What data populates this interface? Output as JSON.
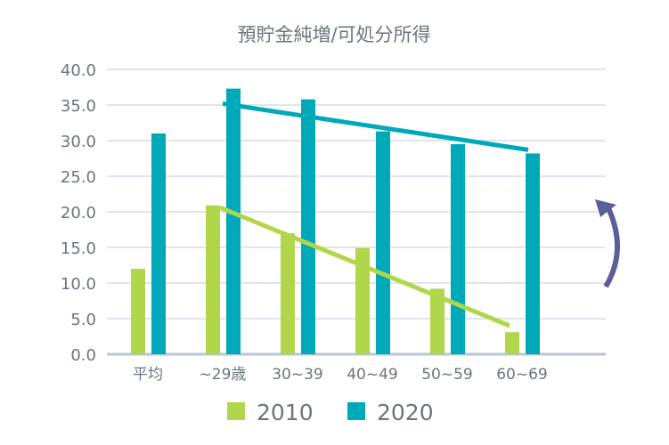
{
  "chart_data": {
    "type": "bar",
    "title": "預貯金純増/可処分所得",
    "categories": [
      "平均",
      "~29歳",
      "30~39",
      "40~49",
      "50~59",
      "60~69"
    ],
    "series": [
      {
        "name": "2010",
        "color": "#b1d64b",
        "values": [
          12.0,
          20.9,
          17.0,
          14.9,
          9.2,
          3.1
        ]
      },
      {
        "name": "2020",
        "color": "#00a9ba",
        "values": [
          31.0,
          37.3,
          35.8,
          31.3,
          29.5,
          28.2
        ]
      }
    ],
    "trend_lines": [
      {
        "series": "2010",
        "from_category": "~29歳",
        "to_category": "60~69",
        "from_value": 20.6,
        "to_value": 4.0
      },
      {
        "series": "2020",
        "from_category": "~29歳",
        "to_category": "60~69",
        "from_value": 35.2,
        "to_value": 28.7
      }
    ],
    "annotation_icon": "curved-up-arrow",
    "annotation_color": "#5b5f96",
    "ylim": [
      0,
      40
    ],
    "yticks": [
      "0.0",
      "5.0",
      "10.0",
      "15.0",
      "20.0",
      "25.0",
      "30.0",
      "35.0",
      "40.0"
    ],
    "grid": true,
    "legend_position": "bottom"
  }
}
